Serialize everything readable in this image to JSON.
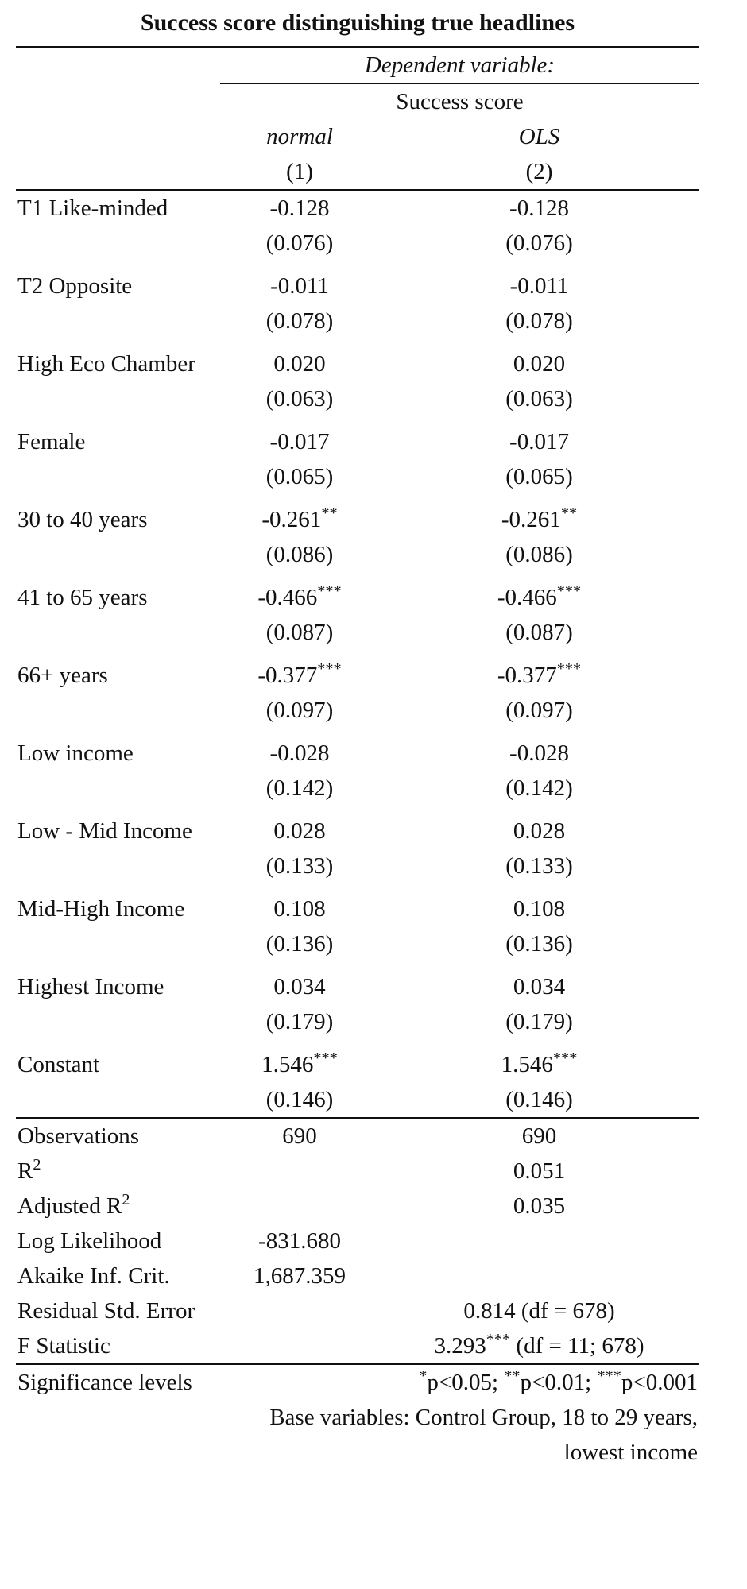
{
  "title": "Success score distinguishing true headlines",
  "header": {
    "dep_var_label": "Dependent variable:",
    "dep_var_name": "Success score",
    "model_types": [
      "normal",
      "OLS"
    ],
    "model_numbers": [
      "(1)",
      "(2)"
    ]
  },
  "rows": [
    {
      "label": "T1 Like-minded",
      "c1": "-0.128",
      "c1_stars": "",
      "c2": "-0.128",
      "c2_stars": "",
      "se1": "(0.076)",
      "se2": "(0.076)"
    },
    {
      "label": "T2 Opposite",
      "c1": "-0.011",
      "c1_stars": "",
      "c2": "-0.011",
      "c2_stars": "",
      "se1": "(0.078)",
      "se2": "(0.078)"
    },
    {
      "label": "High Eco Chamber",
      "c1": "0.020",
      "c1_stars": "",
      "c2": "0.020",
      "c2_stars": "",
      "se1": "(0.063)",
      "se2": "(0.063)"
    },
    {
      "label": "Female",
      "c1": "-0.017",
      "c1_stars": "",
      "c2": "-0.017",
      "c2_stars": "",
      "se1": "(0.065)",
      "se2": "(0.065)"
    },
    {
      "label": "30 to 40 years",
      "c1": "-0.261",
      "c1_stars": "**",
      "c2": "-0.261",
      "c2_stars": "**",
      "se1": "(0.086)",
      "se2": "(0.086)"
    },
    {
      "label": "41 to 65 years",
      "c1": "-0.466",
      "c1_stars": "***",
      "c2": "-0.466",
      "c2_stars": "***",
      "se1": "(0.087)",
      "se2": "(0.087)"
    },
    {
      "label": "66+ years",
      "c1": "-0.377",
      "c1_stars": "***",
      "c2": "-0.377",
      "c2_stars": "***",
      "se1": "(0.097)",
      "se2": "(0.097)"
    },
    {
      "label": "Low income",
      "c1": "-0.028",
      "c1_stars": "",
      "c2": "-0.028",
      "c2_stars": "",
      "se1": "(0.142)",
      "se2": "(0.142)"
    },
    {
      "label": "Low - Mid Income",
      "c1": "0.028",
      "c1_stars": "",
      "c2": "0.028",
      "c2_stars": "",
      "se1": "(0.133)",
      "se2": "(0.133)"
    },
    {
      "label": "Mid-High Income",
      "c1": "0.108",
      "c1_stars": "",
      "c2": "0.108",
      "c2_stars": "",
      "se1": "(0.136)",
      "se2": "(0.136)"
    },
    {
      "label": "Highest Income",
      "c1": "0.034",
      "c1_stars": "",
      "c2": "0.034",
      "c2_stars": "",
      "se1": "(0.179)",
      "se2": "(0.179)"
    },
    {
      "label": "Constant",
      "c1": "1.546",
      "c1_stars": "***",
      "c2": "1.546",
      "c2_stars": "***",
      "se1": "(0.146)",
      "se2": "(0.146)"
    }
  ],
  "stats": {
    "observations": {
      "label": "Observations",
      "c1": "690",
      "c2": "690"
    },
    "r2": {
      "label": "R",
      "sup": "2",
      "c1": "",
      "c2": "0.051"
    },
    "adj_r2": {
      "label": "Adjusted R",
      "sup": "2",
      "c1": "",
      "c2": "0.035"
    },
    "loglik": {
      "label": "Log Likelihood",
      "c1": "-831.680",
      "c2": ""
    },
    "aic": {
      "label": "Akaike Inf. Crit.",
      "c1": "1,687.359",
      "c2": ""
    },
    "rse": {
      "label": "Residual Std. Error",
      "value": "0.814 (df = 678)"
    },
    "fstat": {
      "label": "F Statistic",
      "value": "3.293",
      "stars": "***",
      "df": " (df = 11; 678)"
    }
  },
  "notes": {
    "sig_label": "Significance levels",
    "sig1_star": "*",
    "sig1_text": "p<0.05; ",
    "sig2_star": "**",
    "sig2_text": "p<0.01; ",
    "sig3_star": "***",
    "sig3_text": "p<0.001",
    "base_line1": "Base variables: Control Group, 18 to 29 years,",
    "base_line2": "lowest income"
  }
}
